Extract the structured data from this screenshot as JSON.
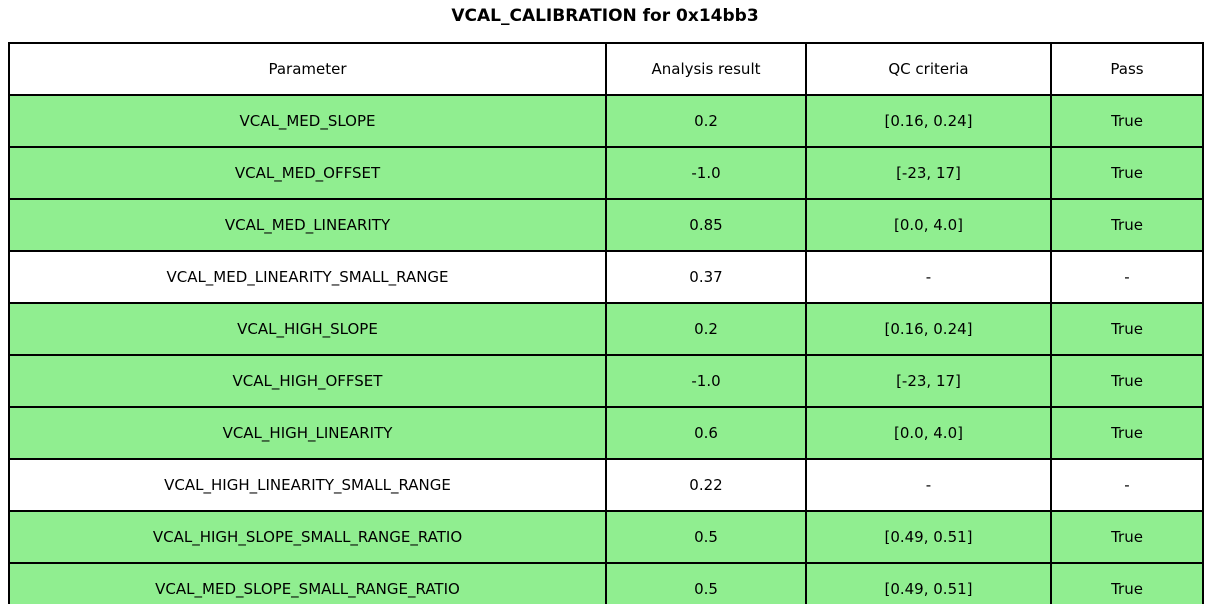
{
  "chart_data": {
    "type": "table",
    "title": "VCAL_CALIBRATION for 0x14bb3",
    "columns": [
      "Parameter",
      "Analysis result",
      "QC criteria",
      "Pass"
    ],
    "rows": [
      {
        "parameter": "VCAL_MED_SLOPE",
        "result": "0.2",
        "criteria": "[0.16, 0.24]",
        "pass": "True",
        "highlight": true
      },
      {
        "parameter": "VCAL_MED_OFFSET",
        "result": "-1.0",
        "criteria": "[-23, 17]",
        "pass": "True",
        "highlight": true
      },
      {
        "parameter": "VCAL_MED_LINEARITY",
        "result": "0.85",
        "criteria": "[0.0, 4.0]",
        "pass": "True",
        "highlight": true
      },
      {
        "parameter": "VCAL_MED_LINEARITY_SMALL_RANGE",
        "result": "0.37",
        "criteria": "-",
        "pass": "-",
        "highlight": false
      },
      {
        "parameter": "VCAL_HIGH_SLOPE",
        "result": "0.2",
        "criteria": "[0.16, 0.24]",
        "pass": "True",
        "highlight": true
      },
      {
        "parameter": "VCAL_HIGH_OFFSET",
        "result": "-1.0",
        "criteria": "[-23, 17]",
        "pass": "True",
        "highlight": true
      },
      {
        "parameter": "VCAL_HIGH_LINEARITY",
        "result": "0.6",
        "criteria": "[0.0, 4.0]",
        "pass": "True",
        "highlight": true
      },
      {
        "parameter": "VCAL_HIGH_LINEARITY_SMALL_RANGE",
        "result": "0.22",
        "criteria": "-",
        "pass": "-",
        "highlight": false
      },
      {
        "parameter": "VCAL_HIGH_SLOPE_SMALL_RANGE_RATIO",
        "result": "0.5",
        "criteria": "[0.49, 0.51]",
        "pass": "True",
        "highlight": true
      },
      {
        "parameter": "VCAL_MED_SLOPE_SMALL_RANGE_RATIO",
        "result": "0.5",
        "criteria": "[0.49, 0.51]",
        "pass": "True",
        "highlight": true
      }
    ],
    "legend": "none",
    "grid": "table-borders"
  },
  "colors": {
    "pass_row_green": "#90ee90",
    "border": "#000000",
    "background": "#ffffff",
    "text": "#000000"
  }
}
